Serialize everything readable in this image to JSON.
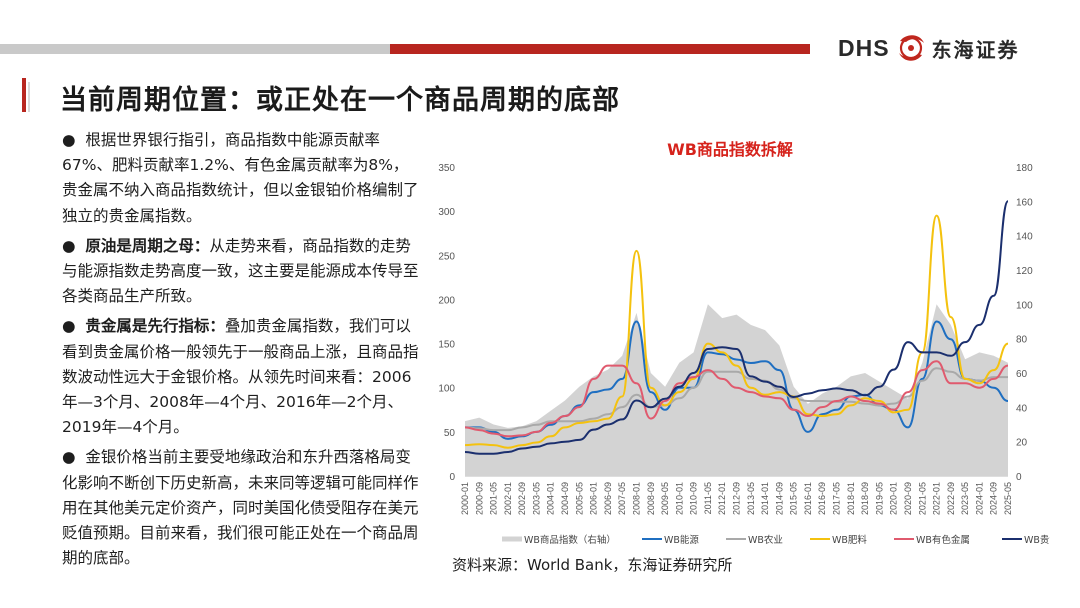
{
  "header": {
    "logo_text": "DHS",
    "logo_cn": "东海证券",
    "brand_red": "#b8261f"
  },
  "page": {
    "title": "当前周期位置：或正处在一个商品周期的底部"
  },
  "bullets": [
    {
      "marker": "●",
      "bold": "",
      "text": "根据世界银行指引，商品指数中能源贡献率67%、肥料贡献率1.2%、有色金属贡献率为8%，贵金属不纳入商品指数统计，但以金银铂价格编制了独立的贵金属指数。"
    },
    {
      "marker": "●",
      "bold": "原油是周期之母：",
      "text": "从走势来看，商品指数的走势与能源指数走势高度一致，这主要是能源成本传导至各类商品生产所致。"
    },
    {
      "marker": "●",
      "bold": "贵金属是先行指标：",
      "text": "叠加贵金属指数，我们可以看到贵金属价格一般领先于一般商品上涨，且商品指数波动性远大于金银价格。从领先时间来看：2006年—3个月、2008年—4个月、2016年—2个月、2019年—4个月。"
    },
    {
      "marker": "●",
      "bold": "",
      "text": "金银价格当前主要受地缘政治和东升西落格局变化影响不断创下历史新高，未来同等逻辑可能同样作用在其他美元定价资产，同时美国化债受阻存在美元贬值预期。目前来看，我们很可能正处在一个商品周期的底部。"
    }
  ],
  "source_text": "资料来源：World Bank，东海证券研究所",
  "chart_data": {
    "type": "line",
    "title": "WB商品指数拆解",
    "x": [
      "2000-01",
      "2000-09",
      "2001-05",
      "2002-01",
      "2002-09",
      "2003-05",
      "2004-01",
      "2004-09",
      "2005-05",
      "2006-01",
      "2006-09",
      "2007-05",
      "2008-01",
      "2008-09",
      "2009-05",
      "2010-01",
      "2010-09",
      "2011-05",
      "2012-01",
      "2012-09",
      "2013-05",
      "2014-01",
      "2014-09",
      "2015-05",
      "2016-01",
      "2016-09",
      "2017-05",
      "2018-01",
      "2018-09",
      "2019-05",
      "2020-01",
      "2020-09",
      "2021-05",
      "2022-01",
      "2022-09",
      "2023-05",
      "2024-01",
      "2024-09",
      "2025-05"
    ],
    "xlabel": "",
    "ylabel_left": "",
    "ylabel_right": "",
    "ylim_left": [
      0,
      350
    ],
    "yticks_left": [
      0,
      50,
      100,
      150,
      200,
      250,
      300,
      350
    ],
    "ylim_right": [
      0,
      180
    ],
    "yticks_right": [
      0,
      20,
      40,
      60,
      80,
      100,
      120,
      140,
      160,
      180
    ],
    "legend_position": "bottom",
    "series": [
      {
        "name": "WB商品指数（右轴）",
        "axis": "right",
        "style": "area",
        "color": "#d3d3d3",
        "values": [
          32,
          34,
          30,
          28,
          29,
          32,
          38,
          44,
          52,
          58,
          62,
          70,
          95,
          60,
          52,
          66,
          72,
          100,
          92,
          94,
          88,
          85,
          76,
          52,
          42,
          48,
          52,
          58,
          60,
          55,
          50,
          45,
          66,
          100,
          88,
          68,
          72,
          70,
          66
        ]
      },
      {
        "name": "WB能源",
        "axis": "left",
        "style": "line",
        "color": "#1f6fc1",
        "values": [
          55,
          55,
          50,
          42,
          45,
          50,
          58,
          68,
          80,
          95,
          98,
          110,
          175,
          95,
          75,
          100,
          100,
          140,
          138,
          132,
          128,
          130,
          120,
          75,
          50,
          70,
          75,
          90,
          92,
          80,
          75,
          55,
          110,
          175,
          155,
          110,
          108,
          100,
          85
        ]
      },
      {
        "name": "WB农业",
        "axis": "left",
        "style": "line",
        "color": "#a9a9a9",
        "values": [
          55,
          54,
          52,
          52,
          55,
          58,
          62,
          62,
          62,
          65,
          70,
          78,
          92,
          78,
          80,
          88,
          100,
          118,
          118,
          118,
          110,
          108,
          98,
          88,
          85,
          85,
          84,
          84,
          82,
          80,
          82,
          90,
          108,
          122,
          118,
          110,
          108,
          112,
          112
        ]
      },
      {
        "name": "WB肥料",
        "axis": "left",
        "style": "line",
        "color": "#f4c20f",
        "values": [
          35,
          36,
          35,
          32,
          35,
          38,
          45,
          55,
          60,
          62,
          65,
          90,
          255,
          100,
          80,
          95,
          110,
          150,
          140,
          125,
          100,
          92,
          95,
          90,
          70,
          68,
          70,
          80,
          88,
          85,
          72,
          75,
          140,
          295,
          180,
          110,
          105,
          120,
          150
        ]
      },
      {
        "name": "WB有色金属",
        "axis": "left",
        "style": "line",
        "color": "#e05a6e",
        "values": [
          55,
          52,
          48,
          45,
          46,
          50,
          60,
          68,
          78,
          110,
          125,
          125,
          105,
          65,
          85,
          105,
          112,
          120,
          110,
          100,
          95,
          90,
          88,
          75,
          68,
          78,
          85,
          90,
          85,
          82,
          75,
          95,
          120,
          130,
          105,
          105,
          100,
          110,
          125
        ]
      },
      {
        "name": "WB贵金属",
        "axis": "right",
        "style": "line",
        "color": "#1b2f6e",
        "values": [
          14,
          13,
          13,
          14,
          16,
          17,
          19,
          20,
          21,
          27,
          30,
          33,
          44,
          40,
          45,
          52,
          60,
          74,
          75,
          74,
          58,
          55,
          52,
          46,
          48,
          50,
          51,
          50,
          47,
          52,
          62,
          78,
          72,
          72,
          70,
          78,
          88,
          105,
          160
        ]
      }
    ]
  }
}
